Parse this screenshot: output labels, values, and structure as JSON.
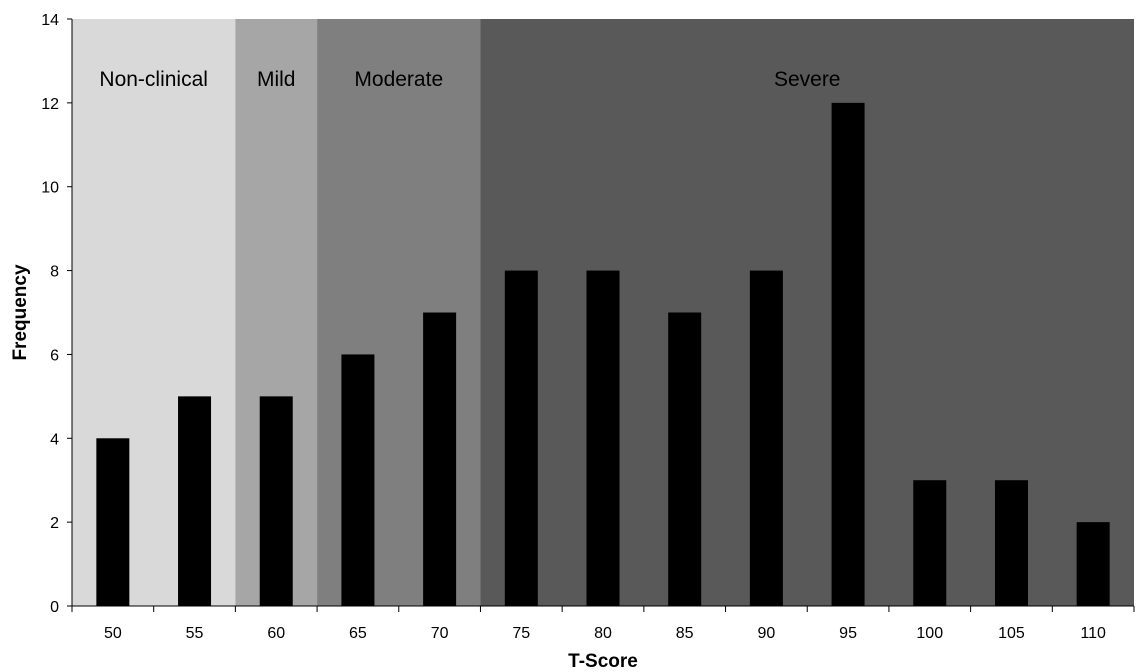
{
  "chart_data": {
    "type": "bar",
    "categories": [
      "50",
      "55",
      "60",
      "65",
      "70",
      "75",
      "80",
      "85",
      "90",
      "95",
      "100",
      "105",
      "110"
    ],
    "values": [
      4,
      5,
      5,
      6,
      7,
      8,
      8,
      7,
      8,
      12,
      3,
      3,
      2
    ],
    "title": "",
    "xlabel": "T-Score",
    "ylabel": "Frequency",
    "ylim": [
      0,
      14
    ],
    "yticks": [
      0,
      2,
      4,
      6,
      8,
      10,
      12,
      14
    ],
    "grid": false,
    "legend": "none",
    "bar_color": "#000000",
    "bands": [
      {
        "label": "Non-clinical",
        "from_category": 0,
        "to_category": 2,
        "color": "#d9d9d9"
      },
      {
        "label": "Mild",
        "from_category": 2,
        "to_category": 3,
        "color": "#a6a6a6"
      },
      {
        "label": "Moderate",
        "from_category": 3,
        "to_category": 5,
        "color": "#7f7f7f"
      },
      {
        "label": "Severe",
        "from_category": 5,
        "to_category": 13,
        "color": "#595959"
      }
    ]
  }
}
